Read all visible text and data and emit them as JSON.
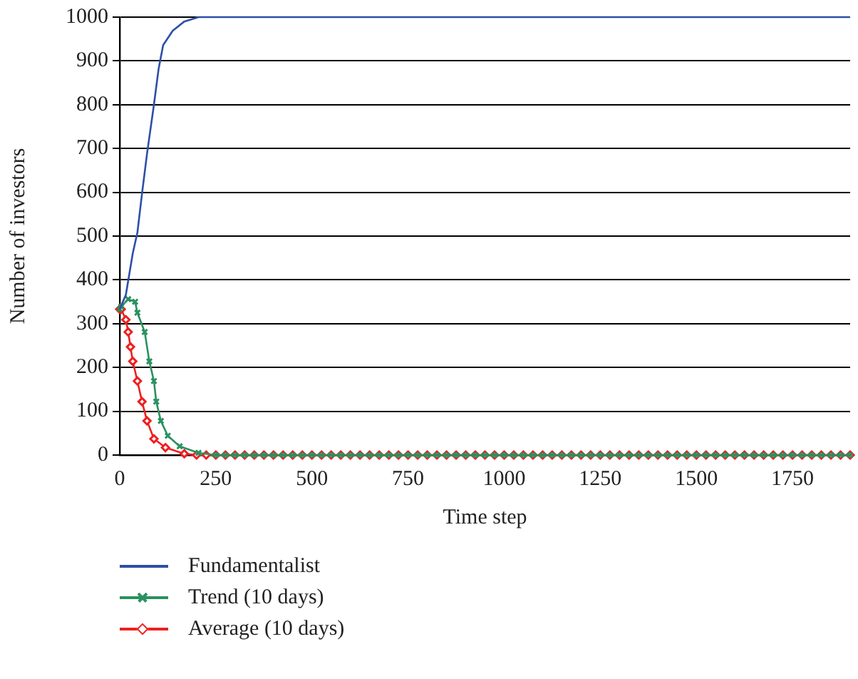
{
  "chart_data": {
    "type": "line",
    "xlabel": "Time step",
    "ylabel": "Number of investors",
    "xlim": [
      0,
      1900
    ],
    "xticks": [
      0,
      250,
      500,
      750,
      1000,
      1250,
      1500,
      1750
    ],
    "ylim": [
      0,
      1000
    ],
    "yticks": [
      0,
      100,
      200,
      300,
      400,
      500,
      600,
      700,
      800,
      900,
      1000
    ],
    "grid": "y",
    "legend": "bottom left",
    "line_style": "solid",
    "series": [
      {
        "name": "Fundamentalist",
        "color": "#2e4fa8",
        "marker": "none",
        "x": [
          0,
          16,
          34,
          46,
          58,
          71,
          89,
          101,
          113,
          138,
          168,
          205,
          250,
          500,
          750,
          1000,
          1250,
          1500,
          1750,
          1900
        ],
        "values": [
          333,
          366,
          461,
          508,
          597,
          688,
          800,
          881,
          936,
          969,
          990,
          1000,
          1000,
          1000,
          1000,
          1000,
          1000,
          1000,
          1000,
          1000
        ]
      },
      {
        "name": "Trend (10 days)",
        "color": "#2a9160",
        "marker": "cross",
        "x": [
          0,
          4,
          22,
          40,
          46,
          65,
          77,
          89,
          95,
          107,
          125,
          156,
          205,
          250,
          275,
          300,
          325,
          350,
          375,
          400,
          425,
          450,
          475,
          500,
          525,
          550,
          575,
          600,
          625,
          650,
          675,
          700,
          725,
          750,
          775,
          800,
          825,
          850,
          875,
          900,
          925,
          950,
          975,
          1000,
          1025,
          1050,
          1075,
          1100,
          1125,
          1150,
          1175,
          1200,
          1225,
          1250,
          1275,
          1300,
          1325,
          1350,
          1375,
          1400,
          1425,
          1450,
          1475,
          1500,
          1525,
          1550,
          1575,
          1600,
          1625,
          1650,
          1675,
          1700,
          1725,
          1750,
          1775,
          1800,
          1825,
          1850,
          1875,
          1900
        ],
        "values": [
          333,
          339,
          356,
          350,
          325,
          281,
          214,
          169,
          122,
          78,
          44,
          20,
          5,
          0,
          0,
          0,
          0,
          0,
          0,
          0,
          0,
          0,
          0,
          0,
          0,
          0,
          0,
          0,
          0,
          0,
          0,
          0,
          0,
          0,
          0,
          0,
          0,
          0,
          0,
          0,
          0,
          0,
          0,
          0,
          0,
          0,
          0,
          0,
          0,
          0,
          0,
          0,
          0,
          0,
          0,
          0,
          0,
          0,
          0,
          0,
          0,
          0,
          0,
          0,
          0,
          0,
          0,
          0,
          0,
          0,
          0,
          0,
          0,
          0,
          0,
          0,
          0,
          0,
          0,
          0
        ]
      },
      {
        "name": "Average (10 days)",
        "color": "#ee2020",
        "marker": "diamond",
        "x": [
          0,
          4,
          16,
          22,
          28,
          34,
          46,
          58,
          71,
          89,
          119,
          168,
          200,
          225,
          250,
          275,
          300,
          325,
          350,
          375,
          400,
          425,
          450,
          475,
          500,
          525,
          550,
          575,
          600,
          625,
          650,
          675,
          700,
          725,
          750,
          775,
          800,
          825,
          850,
          875,
          900,
          925,
          950,
          975,
          1000,
          1025,
          1050,
          1075,
          1100,
          1125,
          1150,
          1175,
          1200,
          1225,
          1250,
          1275,
          1300,
          1325,
          1350,
          1375,
          1400,
          1425,
          1450,
          1475,
          1500,
          1525,
          1550,
          1575,
          1600,
          1625,
          1650,
          1675,
          1700,
          1725,
          1750,
          1775,
          1800,
          1825,
          1850,
          1875,
          1900
        ],
        "values": [
          333,
          333,
          309,
          281,
          247,
          214,
          169,
          122,
          78,
          37,
          17,
          3,
          0,
          0,
          0,
          0,
          0,
          0,
          0,
          0,
          0,
          0,
          0,
          0,
          0,
          0,
          0,
          0,
          0,
          0,
          0,
          0,
          0,
          0,
          0,
          0,
          0,
          0,
          0,
          0,
          0,
          0,
          0,
          0,
          0,
          0,
          0,
          0,
          0,
          0,
          0,
          0,
          0,
          0,
          0,
          0,
          0,
          0,
          0,
          0,
          0,
          0,
          0,
          0,
          0,
          0,
          0,
          0,
          0,
          0,
          0,
          0,
          0,
          0,
          0,
          0,
          0,
          0,
          0,
          0,
          0
        ]
      }
    ]
  }
}
